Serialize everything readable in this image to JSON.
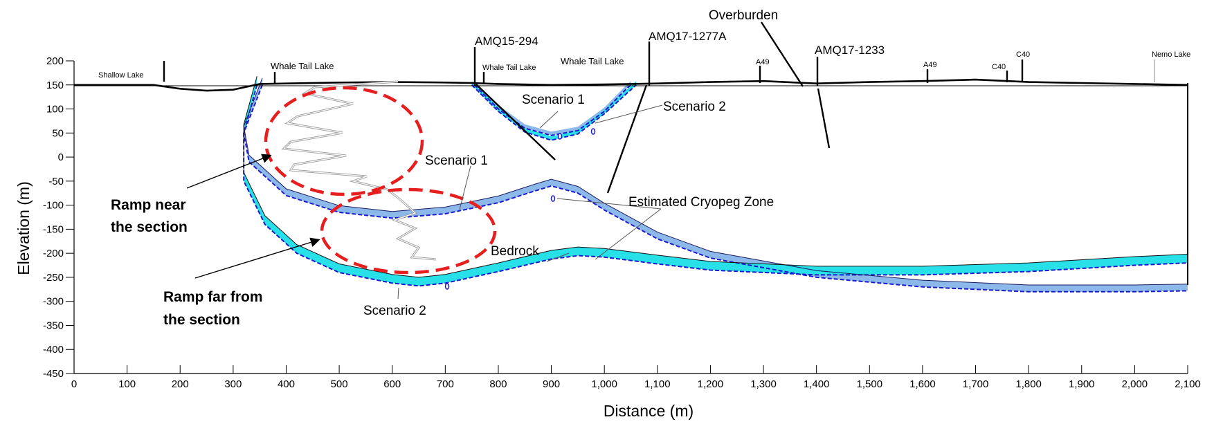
{
  "chart_data": {
    "type": "area",
    "xlabel": "Distance (m)",
    "ylabel": "Elevation (m)",
    "xlim": [
      0,
      2100
    ],
    "ylim": [
      -450,
      200
    ],
    "x_ticks": [
      "0",
      "100",
      "200",
      "300",
      "400",
      "500",
      "600",
      "700",
      "800",
      "900",
      "1,000",
      "1,100",
      "1,200",
      "1,300",
      "1,400",
      "1,500",
      "1,600",
      "1,700",
      "1,800",
      "1,900",
      "2,000",
      "2,100"
    ],
    "y_ticks": [
      "200",
      "150",
      "100",
      "50",
      "0",
      "-50",
      "-100",
      "-150",
      "-200",
      "-250",
      "-300",
      "-350",
      "-400",
      "-450"
    ],
    "ground_surface": {
      "x": [
        0,
        150,
        200,
        250,
        300,
        350,
        400,
        500,
        600,
        700,
        750,
        800,
        900,
        1000,
        1050,
        1100,
        1200,
        1300,
        1400,
        1500,
        1600,
        1700,
        1800,
        1900,
        2000,
        2100
      ],
      "y": [
        150,
        150,
        142,
        138,
        140,
        152,
        153,
        155,
        156,
        155,
        154,
        152,
        150,
        151,
        152,
        153,
        156,
        158,
        153,
        156,
        158,
        161,
        156,
        154,
        152,
        150
      ]
    },
    "series": [
      {
        "name": "Scenario 1",
        "x": [
          355,
          320,
          330,
          400,
          500,
          600,
          700,
          800,
          870,
          900,
          950,
          1000,
          1100,
          1200,
          1400,
          1600,
          1800,
          2000,
          2100
        ],
        "y": [
          150,
          50,
          -10,
          -80,
          -115,
          -127,
          -118,
          -95,
          -70,
          -60,
          -75,
          -110,
          -170,
          -210,
          -250,
          -270,
          -280,
          -280,
          -278
        ]
      },
      {
        "name": "Scenario 2",
        "x": [
          345,
          320,
          320,
          360,
          420,
          500,
          600,
          650,
          700,
          800,
          900,
          950,
          1000,
          1100,
          1200,
          1400,
          1600,
          1800,
          2000,
          2100
        ],
        "y": [
          150,
          50,
          -50,
          -140,
          -200,
          -240,
          -262,
          -268,
          -262,
          -238,
          -212,
          -205,
          -208,
          -222,
          -235,
          -245,
          -245,
          -238,
          -225,
          -220
        ]
      },
      {
        "name": "Scenario 1",
        "x": [
          755,
          800,
          850,
          900,
          950,
          1000,
          1040,
          1050
        ],
        "y": [
          150,
          100,
          60,
          45,
          55,
          95,
          140,
          150
        ]
      },
      {
        "name": "Scenario 2",
        "x": [
          750,
          800,
          850,
          900,
          950,
          1000,
          1050,
          1060
        ],
        "y": [
          150,
          95,
          52,
          35,
          48,
          90,
          140,
          150
        ]
      }
    ],
    "annotations": {
      "boreholes": [
        "AMQ15-294",
        "AMQ17-1277A",
        "AMQ17-1233"
      ],
      "small_markers": [
        "A49",
        "A49",
        "C40",
        "C40"
      ],
      "lakes": [
        "Shallow Lake",
        "Whale Tail Lake",
        "Whale Tail Lake",
        "Whale Tail Lake",
        "Nemo Lake"
      ],
      "overburden": "Overburden",
      "cryopeg": "Estimated Cryopeg Zone",
      "bedrock": "Bedrock",
      "scenario1_pit": "Scenario 1",
      "scenario2_pit": "Scenario 2",
      "scenario1_main": "Scenario 1",
      "scenario2_main": "Scenario 2",
      "ramp_near_1": "Ramp near",
      "ramp_near_2": "the section",
      "ramp_far_1": "Ramp far from",
      "ramp_far_2": "the section"
    },
    "colors": {
      "scenario1_fill": "#8cb9ea",
      "scenario2_fill": "#28e0e8",
      "boundary_dash": "#1a1acc",
      "ramp_ellipse": "#e61e1e",
      "ground": "#000000"
    }
  }
}
